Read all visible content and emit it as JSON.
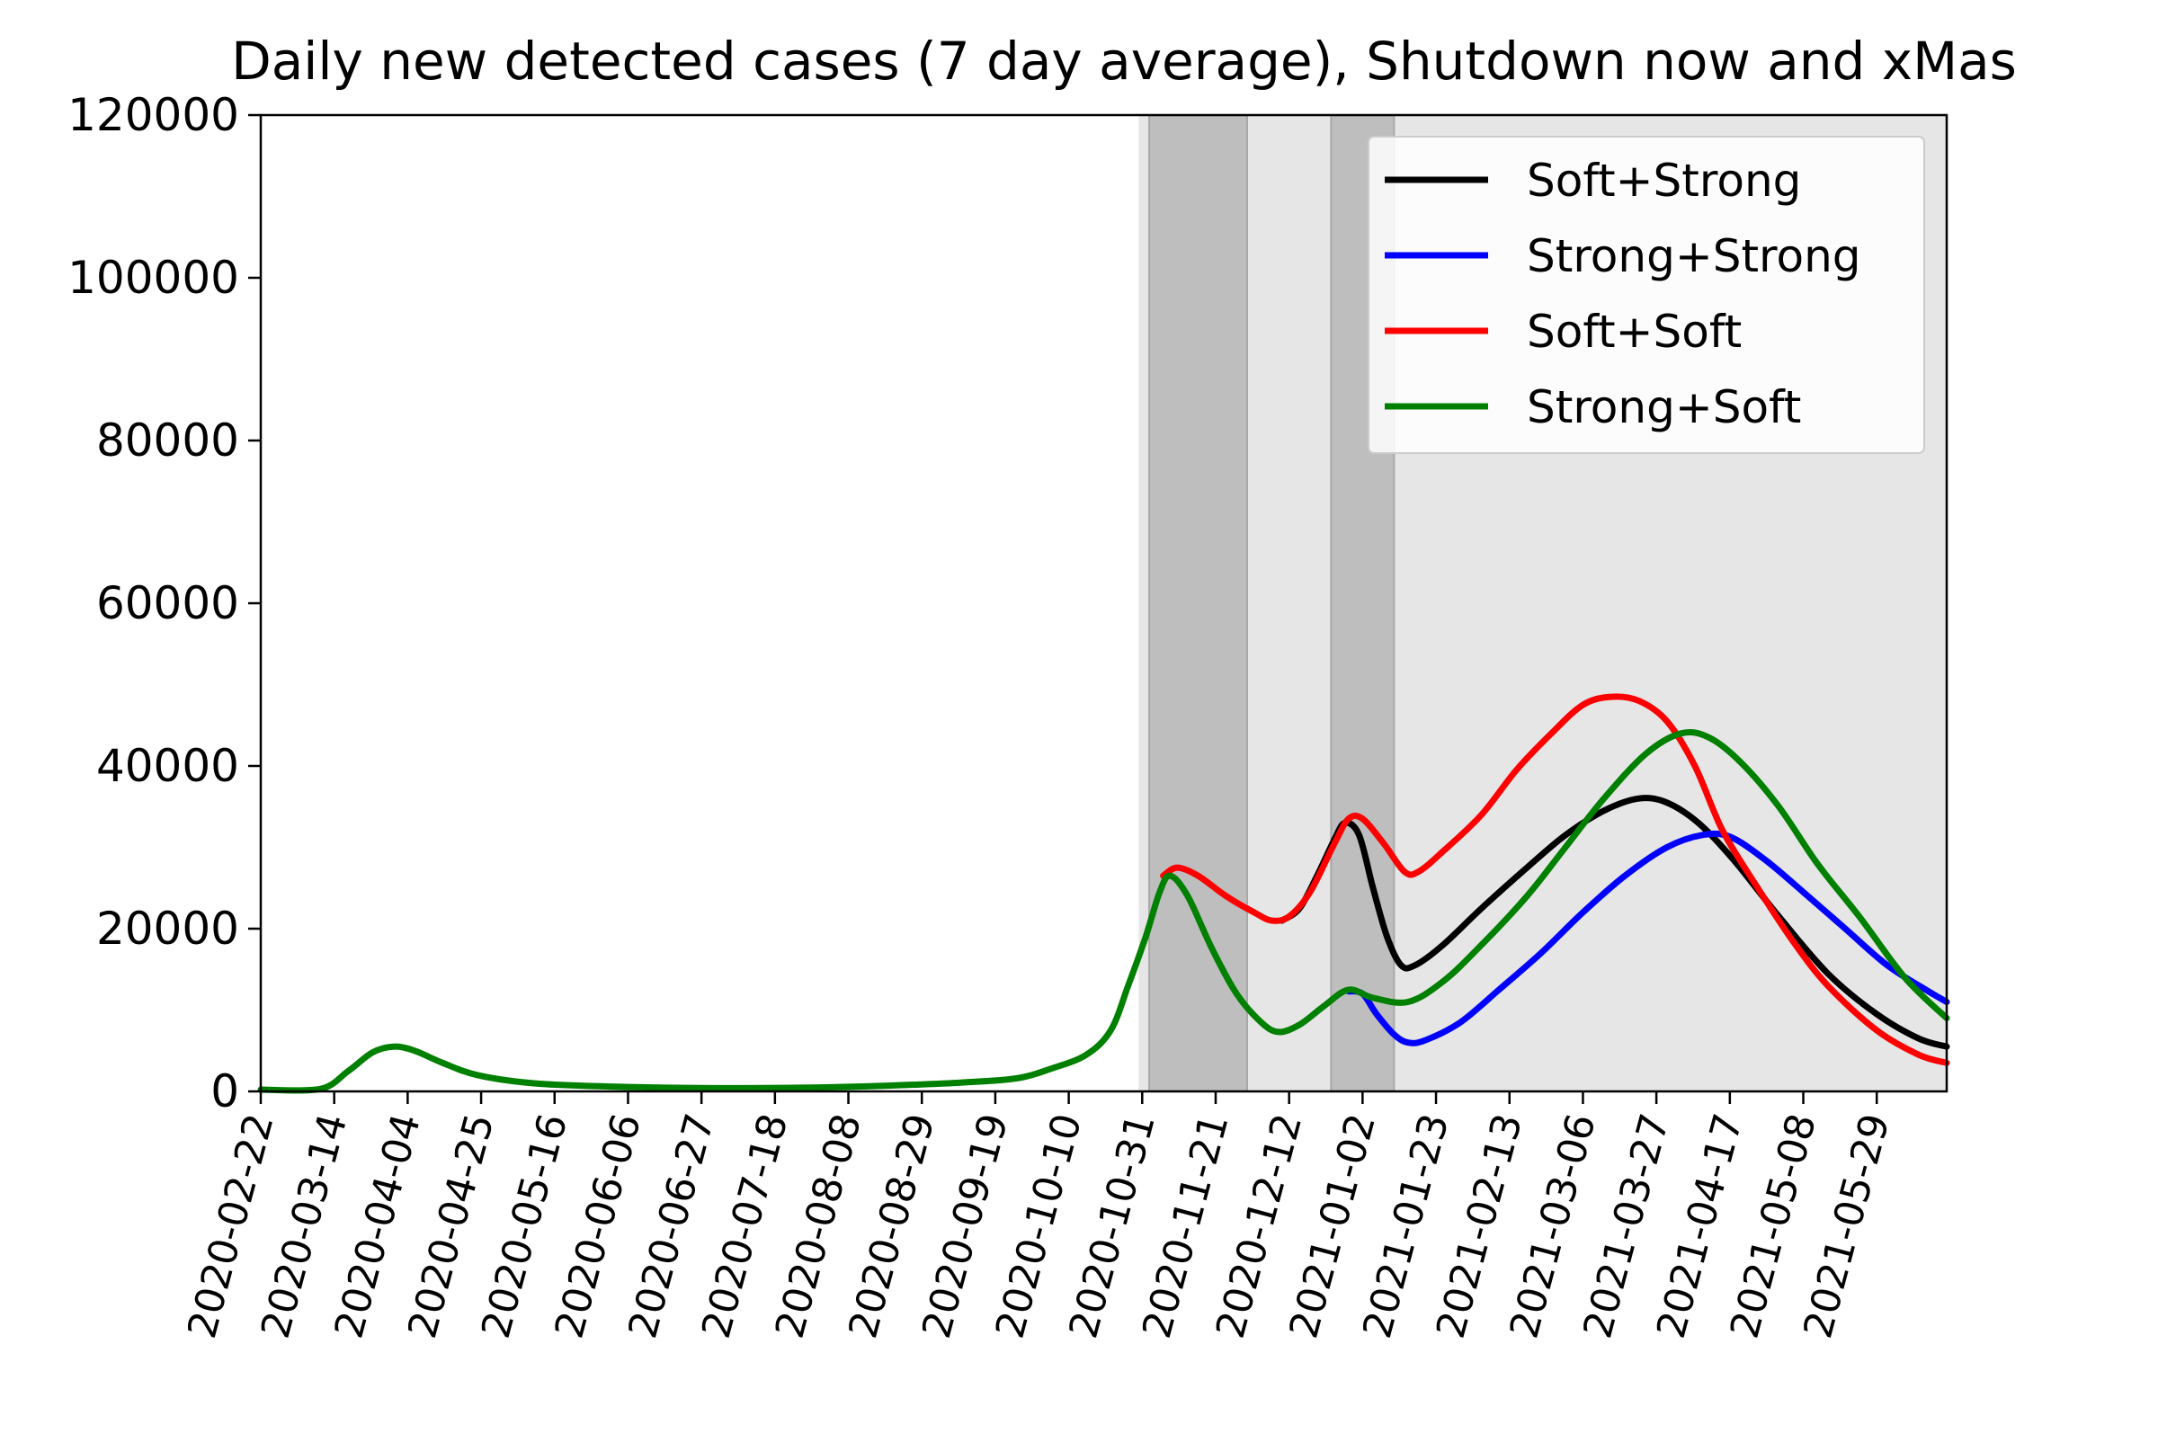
{
  "chart_data": {
    "type": "line",
    "title": "Daily new detected cases (7 day average), Shutdown now and xMas",
    "xlabel": "",
    "ylabel": "",
    "ylim": [
      0,
      120000
    ],
    "x_range": [
      "2020-02-22",
      "2021-06-18"
    ],
    "yticks": [
      "0",
      "20000",
      "40000",
      "60000",
      "80000",
      "100000",
      "120000"
    ],
    "xticks": [
      "2020-02-22",
      "2020-03-14",
      "2020-04-04",
      "2020-04-25",
      "2020-05-16",
      "2020-06-06",
      "2020-06-27",
      "2020-07-18",
      "2020-08-08",
      "2020-08-29",
      "2020-09-19",
      "2020-10-10",
      "2020-10-31",
      "2020-11-21",
      "2020-12-12",
      "2021-01-02",
      "2021-01-23",
      "2021-02-13",
      "2021-03-06",
      "2021-03-27",
      "2021-04-17",
      "2021-05-08",
      "2021-05-29"
    ],
    "legend_position": "top-right",
    "shaded_periods": [
      {
        "start": "2020-10-30",
        "end": "2021-06-18",
        "shade": "light"
      },
      {
        "start": "2020-11-02",
        "end": "2020-11-30",
        "shade": "dark"
      },
      {
        "start": "2020-12-24",
        "end": "2021-01-11",
        "shade": "dark"
      }
    ],
    "series": [
      {
        "name": "Soft+Strong",
        "color": "#000000",
        "points": [
          [
            "2020-12-10",
            21000
          ],
          [
            "2020-12-15",
            22500
          ],
          [
            "2020-12-20",
            26500
          ],
          [
            "2020-12-25",
            31000
          ],
          [
            "2020-12-28",
            33000
          ],
          [
            "2021-01-01",
            31500
          ],
          [
            "2021-01-05",
            25000
          ],
          [
            "2021-01-09",
            19000
          ],
          [
            "2021-01-13",
            15500
          ],
          [
            "2021-01-17",
            15500
          ],
          [
            "2021-01-25",
            18000
          ],
          [
            "2021-02-05",
            22500
          ],
          [
            "2021-02-18",
            27500
          ],
          [
            "2021-03-01",
            31500
          ],
          [
            "2021-03-12",
            34500
          ],
          [
            "2021-03-22",
            36000
          ],
          [
            "2021-03-30",
            35500
          ],
          [
            "2021-04-08",
            33000
          ],
          [
            "2021-04-18",
            28500
          ],
          [
            "2021-05-01",
            21500
          ],
          [
            "2021-05-15",
            14500
          ],
          [
            "2021-05-29",
            9500
          ],
          [
            "2021-06-10",
            6500
          ],
          [
            "2021-06-18",
            5500
          ]
        ]
      },
      {
        "name": "Strong+Strong",
        "color": "#0000ff",
        "points": [
          [
            "2020-12-29",
            12300
          ],
          [
            "2021-01-02",
            12000
          ],
          [
            "2021-01-06",
            9500
          ],
          [
            "2021-01-11",
            7000
          ],
          [
            "2021-01-15",
            6000
          ],
          [
            "2021-01-20",
            6300
          ],
          [
            "2021-01-30",
            8500
          ],
          [
            "2021-02-10",
            12500
          ],
          [
            "2021-02-22",
            17000
          ],
          [
            "2021-03-06",
            22000
          ],
          [
            "2021-03-18",
            26500
          ],
          [
            "2021-03-30",
            30000
          ],
          [
            "2021-04-09",
            31500
          ],
          [
            "2021-04-17",
            31300
          ],
          [
            "2021-04-27",
            28500
          ],
          [
            "2021-05-08",
            24500
          ],
          [
            "2021-05-20",
            20000
          ],
          [
            "2021-06-01",
            15500
          ],
          [
            "2021-06-12",
            12500
          ],
          [
            "2021-06-18",
            11000
          ]
        ]
      },
      {
        "name": "Soft+Soft",
        "color": "#ff0000",
        "points": [
          [
            "2020-11-06",
            26500
          ],
          [
            "2020-11-10",
            27500
          ],
          [
            "2020-11-16",
            26500
          ],
          [
            "2020-11-24",
            24000
          ],
          [
            "2020-12-02",
            22000
          ],
          [
            "2020-12-07",
            21000
          ],
          [
            "2020-12-12",
            21500
          ],
          [
            "2020-12-18",
            24500
          ],
          [
            "2020-12-25",
            30500
          ],
          [
            "2020-12-29",
            33500
          ],
          [
            "2021-01-02",
            33500
          ],
          [
            "2021-01-08",
            30500
          ],
          [
            "2021-01-14",
            27000
          ],
          [
            "2021-01-18",
            27000
          ],
          [
            "2021-01-25",
            29500
          ],
          [
            "2021-02-05",
            34000
          ],
          [
            "2021-02-15",
            39500
          ],
          [
            "2021-02-25",
            44000
          ],
          [
            "2021-03-06",
            47500
          ],
          [
            "2021-03-14",
            48500
          ],
          [
            "2021-03-22",
            48000
          ],
          [
            "2021-03-30",
            45500
          ],
          [
            "2021-04-07",
            40000
          ],
          [
            "2021-04-15",
            32000
          ],
          [
            "2021-04-25",
            25000
          ],
          [
            "2021-05-05",
            18500
          ],
          [
            "2021-05-15",
            13000
          ],
          [
            "2021-05-29",
            7500
          ],
          [
            "2021-06-10",
            4500
          ],
          [
            "2021-06-18",
            3500
          ]
        ]
      },
      {
        "name": "Strong+Soft",
        "color": "#008000",
        "points": [
          [
            "2020-02-22",
            0
          ],
          [
            "2020-03-10",
            300
          ],
          [
            "2020-03-18",
            2500
          ],
          [
            "2020-03-25",
            4800
          ],
          [
            "2020-03-31",
            5500
          ],
          [
            "2020-04-06",
            5000
          ],
          [
            "2020-04-14",
            3500
          ],
          [
            "2020-04-24",
            2000
          ],
          [
            "2020-05-10",
            1000
          ],
          [
            "2020-06-01",
            600
          ],
          [
            "2020-07-01",
            400
          ],
          [
            "2020-08-01",
            500
          ],
          [
            "2020-08-25",
            800
          ],
          [
            "2020-09-10",
            1100
          ],
          [
            "2020-09-25",
            1600
          ],
          [
            "2020-10-05",
            2800
          ],
          [
            "2020-10-15",
            4500
          ],
          [
            "2020-10-22",
            7500
          ],
          [
            "2020-10-27",
            13000
          ],
          [
            "2020-11-01",
            19000
          ],
          [
            "2020-11-05",
            24500
          ],
          [
            "2020-11-08",
            26500
          ],
          [
            "2020-11-13",
            24000
          ],
          [
            "2020-11-20",
            17500
          ],
          [
            "2020-11-27",
            12000
          ],
          [
            "2020-12-04",
            8500
          ],
          [
            "2020-12-09",
            7300
          ],
          [
            "2020-12-15",
            8200
          ],
          [
            "2020-12-22",
            10500
          ],
          [
            "2020-12-29",
            12500
          ],
          [
            "2021-01-05",
            11500
          ],
          [
            "2021-01-15",
            11000
          ],
          [
            "2021-01-25",
            13500
          ],
          [
            "2021-02-05",
            18000
          ],
          [
            "2021-02-18",
            24000
          ],
          [
            "2021-03-01",
            30000
          ],
          [
            "2021-03-12",
            36000
          ],
          [
            "2021-03-24",
            41500
          ],
          [
            "2021-04-03",
            44000
          ],
          [
            "2021-04-11",
            43500
          ],
          [
            "2021-04-20",
            40500
          ],
          [
            "2021-05-01",
            35000
          ],
          [
            "2021-05-12",
            28000
          ],
          [
            "2021-05-24",
            21500
          ],
          [
            "2021-06-06",
            14000
          ],
          [
            "2021-06-18",
            9000
          ]
        ]
      }
    ]
  }
}
